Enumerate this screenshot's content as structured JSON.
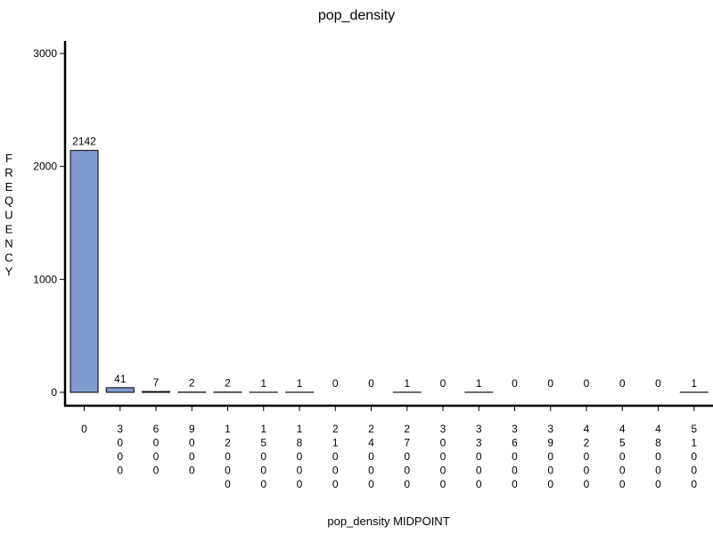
{
  "chart_data": {
    "type": "bar",
    "title": "pop_density",
    "xlabel": "pop_density MIDPOINT",
    "ylabel": "FREQUENCY",
    "categories": [
      "0",
      "3000",
      "6000",
      "9000",
      "12000",
      "15000",
      "18000",
      "21000",
      "24000",
      "27000",
      "30000",
      "33000",
      "36000",
      "39000",
      "42000",
      "45000",
      "48000",
      "51000"
    ],
    "values": [
      2142,
      41,
      7,
      2,
      2,
      1,
      1,
      0,
      0,
      1,
      0,
      1,
      0,
      0,
      0,
      0,
      0,
      1
    ],
    "ylim": [
      0,
      3100
    ],
    "yticks": [
      0,
      1000,
      2000,
      3000
    ],
    "grid": false,
    "bar_color": "#7f9acf",
    "bar_outline": "#000000"
  }
}
